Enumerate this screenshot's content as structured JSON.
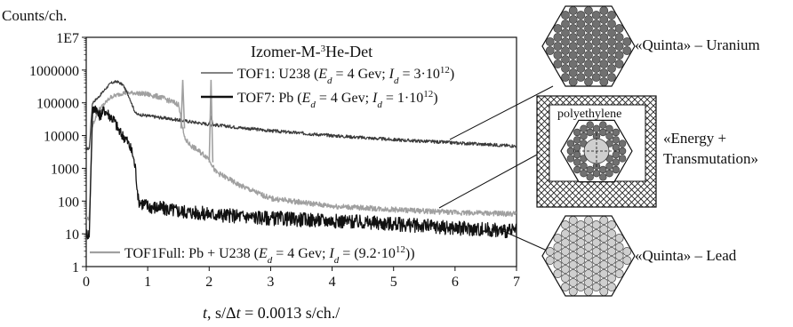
{
  "chart_data": {
    "type": "line",
    "title": "Izomer-M-³He-Det",
    "ylabel": "Counts/ch.",
    "xlabel": "t, s/Δt = 0.0013 s/ch./",
    "x_ticks": [
      "0",
      "1",
      "2",
      "3",
      "4",
      "5",
      "6",
      "7"
    ],
    "y_ticks": [
      "1",
      "10",
      "100",
      "1000",
      "10000",
      "100000",
      "1000000",
      "1E7"
    ],
    "xlim": [
      0,
      7
    ],
    "ylim": [
      1,
      10000000
    ],
    "y_scale": "log",
    "grid": false,
    "series": [
      {
        "name": "TOF1: U238",
        "name_params": "(Ed = 4 Gev; Id = 3·10¹²)",
        "color": "#3a3a3a",
        "x": [
          0,
          0.05,
          0.1,
          0.2,
          0.3,
          0.4,
          0.5,
          0.6,
          0.7,
          0.78,
          0.82,
          1.0,
          1.5,
          2.0,
          3.0,
          4.0,
          5.0,
          6.0,
          7.0
        ],
        "y": [
          4000,
          4000,
          100000,
          150000,
          250000,
          400000,
          450000,
          350000,
          150000,
          60000,
          45000,
          40000,
          30000,
          22000,
          14000,
          10000,
          7500,
          6000,
          4800
        ]
      },
      {
        "name": "TOF7: Pb",
        "name_params": "(Ed = 4 Gev; Id = 1·10¹²)",
        "color": "#111111",
        "x": [
          0,
          0.05,
          0.1,
          0.15,
          0.2,
          0.3,
          0.45,
          0.55,
          0.65,
          0.75,
          0.8,
          0.85,
          1.0,
          1.5,
          2.0,
          3.0,
          4.0,
          5.0,
          6.0,
          7.0
        ],
        "y": [
          10,
          10,
          50000,
          80000,
          40000,
          60000,
          30000,
          12000,
          8000,
          3000,
          1000,
          100,
          70,
          50,
          40,
          30,
          25,
          20,
          15,
          12
        ]
      },
      {
        "name": "TOF1Full: Pb + U238",
        "name_params": "(Ed = 4 Gev; Id = (9.2·10¹²))",
        "color": "#a0a0a0",
        "x": [
          0,
          0.05,
          0.1,
          0.2,
          0.4,
          0.6,
          0.8,
          1.0,
          1.2,
          1.5,
          1.6,
          1.7,
          2.0,
          2.1,
          2.5,
          3.0,
          4.0,
          5.0,
          6.0,
          7.0
        ],
        "y": [
          30,
          30,
          20000,
          60000,
          150000,
          200000,
          200000,
          180000,
          150000,
          90000,
          8000,
          5000,
          2000,
          800,
          300,
          120,
          70,
          55,
          45,
          40
        ]
      }
    ],
    "spikes": [
      {
        "series_index": 2,
        "x": 1.57,
        "y": 500000
      },
      {
        "series_index": 0,
        "x": 2.03,
        "y": 40000
      },
      {
        "series_index": 2,
        "x": 2.03,
        "y": 500000
      }
    ]
  },
  "labels": {
    "quinta_uranium": "«Quinta» – Uranium",
    "energy_transmutation_1": "«Energy +",
    "energy_transmutation_2": "Transmutation»",
    "quinta_lead": "«Quinta» – Lead",
    "polyethylene": "polyethylene"
  },
  "colors": {
    "uranium_fill": "#707070",
    "lead_fill": "#cfcfcf",
    "hatch": "#222222"
  }
}
